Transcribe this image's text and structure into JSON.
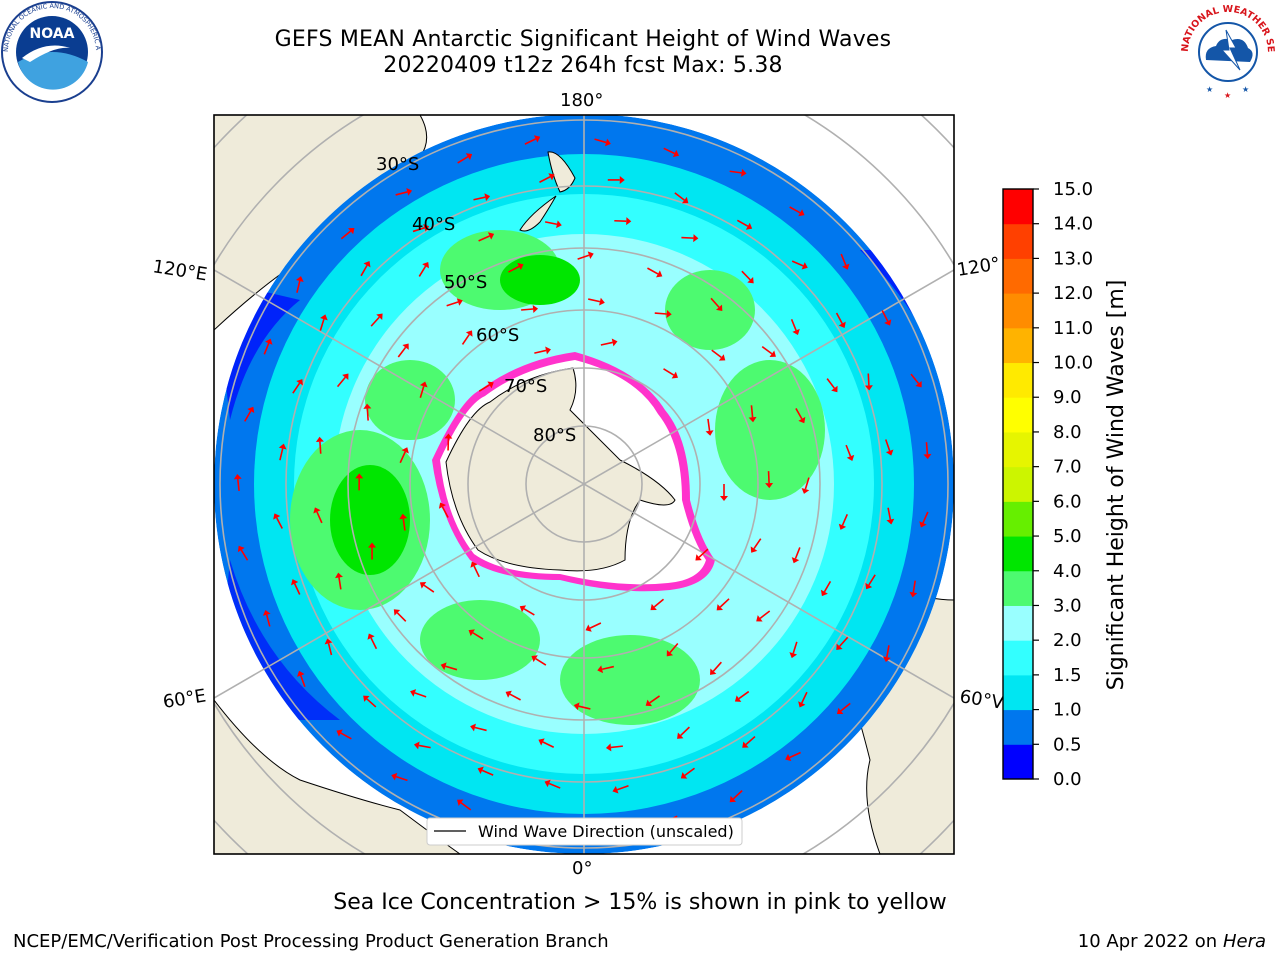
{
  "title": {
    "line1": "GEFS MEAN Antarctic Significant Height of Wind Waves",
    "line2": "20220409 t12z 264h fcst   Max: 5.38"
  },
  "logos": {
    "noaa": {
      "text": "NOAA",
      "ring_text": "NATIONAL OCEANIC AND ATMOSPHERIC ADMINISTRATION",
      "lower_text": "U.S. DEPARTMENT OF COMMERCE"
    },
    "nws": {
      "ring_text": "NATIONAL WEATHER SERVICE"
    }
  },
  "map": {
    "projection": "south-polar-stereographic",
    "lon_labels": {
      "top": "180°",
      "bottom": "0°",
      "left_upper": "120°E",
      "left_lower": "60°E",
      "right_upper": "120°",
      "right_lower": "60°V"
    },
    "lat_labels": [
      "30°S",
      "40°S",
      "50°S",
      "60°S",
      "70°S",
      "80°S"
    ],
    "legend_label": "Wind Wave Direction (unscaled)",
    "colors": {
      "land": "#efebda",
      "ice": "#ffffff",
      "ice_edge": "#ff33cc",
      "arrow": "#ff0000",
      "grid": "#b0b0b0"
    }
  },
  "colorbar": {
    "label": "Significant Height of Wind Waves [m]",
    "ticks": [
      "15.0",
      "14.0",
      "13.0",
      "12.0",
      "11.0",
      "10.0",
      "9.0",
      "8.0",
      "7.0",
      "6.0",
      "5.0",
      "4.0",
      "3.0",
      "2.0",
      "1.5",
      "1.0",
      "0.5",
      "0.0"
    ],
    "levels": [
      {
        "from": 0.0,
        "to": 0.5,
        "color": "#0000ff"
      },
      {
        "from": 0.5,
        "to": 1.0,
        "color": "#0077ee"
      },
      {
        "from": 1.0,
        "to": 1.5,
        "color": "#00e6f2"
      },
      {
        "from": 1.5,
        "to": 2.0,
        "color": "#33ffff"
      },
      {
        "from": 2.0,
        "to": 3.0,
        "color": "#99ffff"
      },
      {
        "from": 3.0,
        "to": 4.0,
        "color": "#4dfa70"
      },
      {
        "from": 4.0,
        "to": 5.0,
        "color": "#00e600"
      },
      {
        "from": 5.0,
        "to": 6.0,
        "color": "#66ef00"
      },
      {
        "from": 6.0,
        "to": 7.0,
        "color": "#ccf500"
      },
      {
        "from": 7.0,
        "to": 8.0,
        "color": "#e6f500"
      },
      {
        "from": 8.0,
        "to": 9.0,
        "color": "#ffff00"
      },
      {
        "from": 9.0,
        "to": 10.0,
        "color": "#ffea00"
      },
      {
        "from": 10.0,
        "to": 11.0,
        "color": "#ffb300"
      },
      {
        "from": 11.0,
        "to": 12.0,
        "color": "#ff8c00"
      },
      {
        "from": 12.0,
        "to": 13.0,
        "color": "#ff6a00"
      },
      {
        "from": 13.0,
        "to": 14.0,
        "color": "#ff4000"
      },
      {
        "from": 14.0,
        "to": 15.0,
        "color": "#ff0000"
      }
    ]
  },
  "note": "Sea Ice Concentration > 15% is shown in pink to yellow",
  "footer": {
    "left": "NCEP/EMC/Verification Post Processing Product Generation Branch",
    "right_prefix": "10 Apr 2022 on ",
    "right_host": "Hera"
  }
}
